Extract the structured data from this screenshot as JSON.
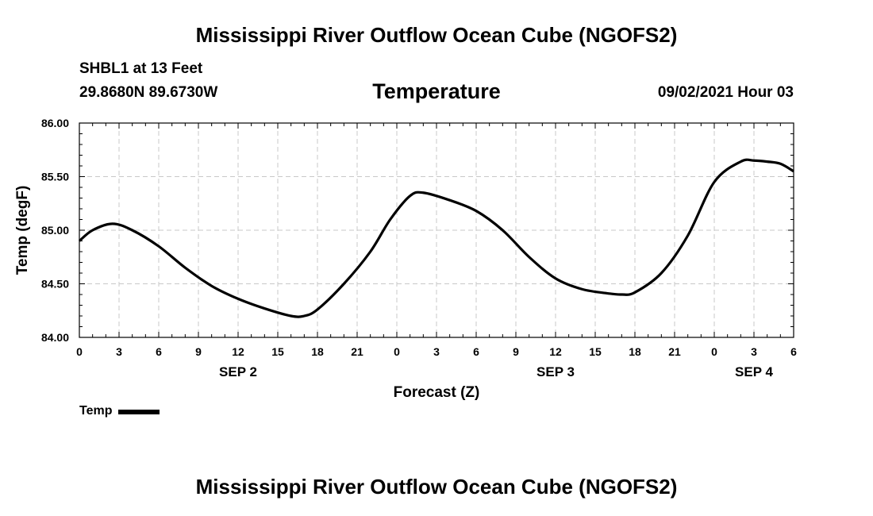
{
  "header": {
    "title": "Mississippi River Outflow Ocean Cube (NGOFS2)",
    "station": "SHBL1 at 13 Feet",
    "coords": "29.8680N  89.6730W",
    "panel_title": "Temperature",
    "datetime": "09/02/2021 Hour 03"
  },
  "footer": {
    "title": "Mississippi River Outflow Ocean Cube (NGOFS2)"
  },
  "legend": {
    "label": "Temp"
  },
  "chart_data": {
    "type": "line",
    "title": "Temperature",
    "xlabel": "Forecast (Z)",
    "ylabel": "Temp (degF)",
    "xlim": [
      0,
      54
    ],
    "ylim": [
      84.0,
      86.0
    ],
    "grid": true,
    "legend_placement": "bottom-left",
    "x_tick_values": [
      0,
      3,
      6,
      9,
      12,
      15,
      18,
      21,
      24,
      27,
      30,
      33,
      36,
      39,
      42,
      45,
      48,
      51,
      54
    ],
    "x_tick_labels": [
      "0",
      "3",
      "6",
      "9",
      "12",
      "15",
      "18",
      "21",
      "0",
      "3",
      "6",
      "9",
      "12",
      "15",
      "18",
      "21",
      "0",
      "3",
      "6"
    ],
    "date_labels": [
      {
        "x": 12,
        "label": "SEP 2"
      },
      {
        "x": 36,
        "label": "SEP 3"
      },
      {
        "x": 51,
        "label": "SEP 4"
      }
    ],
    "y_tick_values": [
      84.0,
      84.5,
      85.0,
      85.5,
      86.0
    ],
    "y_tick_labels": [
      "84.00",
      "84.50",
      "85.00",
      "85.50",
      "86.00"
    ],
    "series": [
      {
        "name": "Temp",
        "color": "#000000",
        "x": [
          0,
          1,
          2.5,
          4,
          6,
          8,
          10,
          12,
          14,
          16,
          17,
          18,
          20,
          22,
          23.5,
          25,
          26,
          28,
          30,
          32,
          34,
          36,
          38,
          40,
          41,
          42,
          44,
          46,
          48,
          50,
          51,
          52,
          53,
          54
        ],
        "values": [
          84.9,
          85.0,
          85.06,
          85.0,
          84.85,
          84.65,
          84.48,
          84.36,
          84.27,
          84.2,
          84.2,
          84.26,
          84.5,
          84.8,
          85.1,
          85.32,
          85.35,
          85.28,
          85.18,
          85.0,
          84.75,
          84.55,
          84.45,
          84.41,
          84.4,
          84.42,
          84.6,
          84.95,
          85.45,
          85.64,
          85.65,
          85.64,
          85.62,
          85.55
        ]
      }
    ]
  }
}
